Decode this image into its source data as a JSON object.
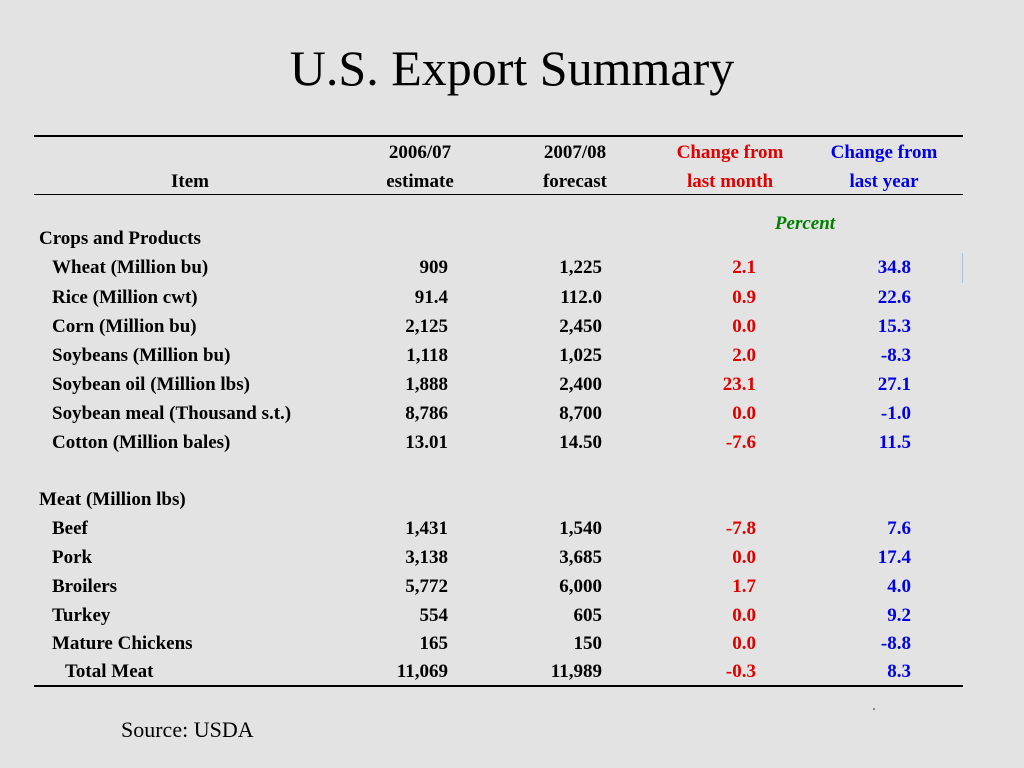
{
  "slide": {
    "title": "U.S. Export Summary",
    "source": "Source:  USDA"
  },
  "table": {
    "headers": {
      "item": "Item",
      "col1_line1": "2006/07",
      "col1_line2": "estimate",
      "col2_line1": "2007/08",
      "col2_line2": "forecast",
      "col3_line1": "Change from",
      "col3_line2": "last month",
      "col4_line1": "Change from",
      "col4_line2": "last year",
      "percent": "Percent"
    },
    "colors": {
      "change_month": "#e00000",
      "change_year": "#0000e6",
      "percent": "#008000",
      "background": "#e3e3e3"
    },
    "sections": [
      {
        "title": "Crops and Products",
        "rows": [
          {
            "item": "Wheat (Million bu)",
            "estimate": "909",
            "forecast": "1,225",
            "change_month": "2.1",
            "change_year": "34.8"
          },
          {
            "item": "Rice (Million cwt)",
            "estimate": "91.4",
            "forecast": "112.0",
            "change_month": "0.9",
            "change_year": "22.6"
          },
          {
            "item": "Corn (Million bu)",
            "estimate": "2,125",
            "forecast": "2,450",
            "change_month": "0.0",
            "change_year": "15.3"
          },
          {
            "item": "Soybeans (Million bu)",
            "estimate": "1,118",
            "forecast": "1,025",
            "change_month": "2.0",
            "change_year": "-8.3"
          },
          {
            "item": "Soybean oil (Million lbs)",
            "estimate": "1,888",
            "forecast": "2,400",
            "change_month": "23.1",
            "change_year": "27.1"
          },
          {
            "item": "Soybean meal (Thousand s.t.)",
            "estimate": "8,786",
            "forecast": "8,700",
            "change_month": "0.0",
            "change_year": "-1.0"
          },
          {
            "item": "Cotton (Million bales)",
            "estimate": "13.01",
            "forecast": "14.50",
            "change_month": "-7.6",
            "change_year": "11.5"
          }
        ]
      },
      {
        "title": "Meat (Million lbs)",
        "rows": [
          {
            "item": "Beef",
            "estimate": "1,431",
            "forecast": "1,540",
            "change_month": "-7.8",
            "change_year": "7.6"
          },
          {
            "item": "Pork",
            "estimate": "3,138",
            "forecast": "3,685",
            "change_month": "0.0",
            "change_year": "17.4"
          },
          {
            "item": "Broilers",
            "estimate": "5,772",
            "forecast": "6,000",
            "change_month": "1.7",
            "change_year": "4.0"
          },
          {
            "item": "Turkey",
            "estimate": "554",
            "forecast": "605",
            "change_month": "0.0",
            "change_year": "9.2"
          },
          {
            "item": "Mature Chickens",
            "estimate": "165",
            "forecast": "150",
            "change_month": "0.0",
            "change_year": "-8.8"
          },
          {
            "item": "Total Meat",
            "estimate": "11,069",
            "forecast": "11,989",
            "change_month": "-0.3",
            "change_year": "8.3"
          }
        ]
      }
    ]
  }
}
